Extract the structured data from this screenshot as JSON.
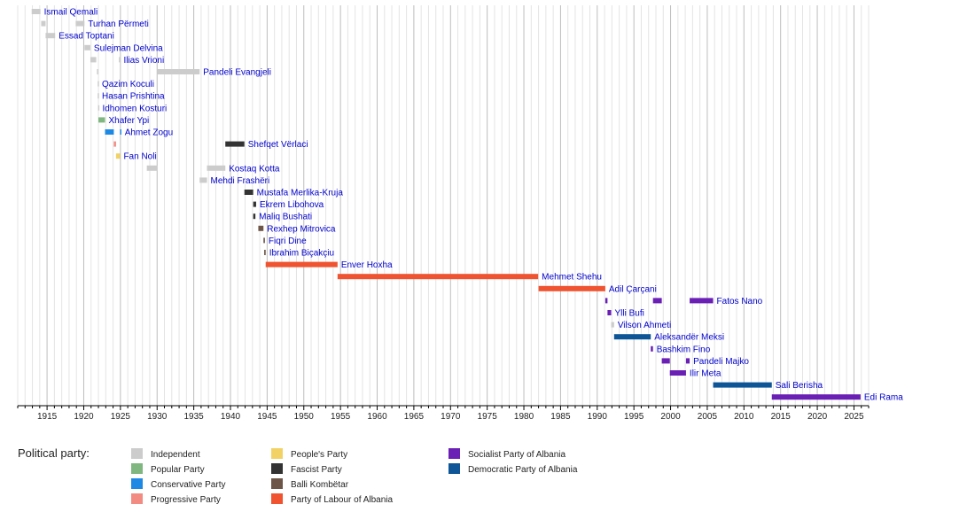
{
  "chart_data": {
    "type": "timeline",
    "title": "",
    "xlim": [
      1911,
      2027
    ],
    "xticks": [
      1915,
      1920,
      1925,
      1930,
      1935,
      1940,
      1945,
      1950,
      1955,
      1960,
      1965,
      1970,
      1975,
      1980,
      1985,
      1990,
      1995,
      2000,
      2005,
      2010,
      2015,
      2020,
      2025
    ],
    "grid": "vertical yearly lines",
    "legend_title": "Political party:",
    "parties": [
      {
        "key": "ind",
        "name": "Independent",
        "color": "#cccccc"
      },
      {
        "key": "pop",
        "name": "Popular Party",
        "color": "#80b780"
      },
      {
        "key": "con",
        "name": "Conservative Party",
        "color": "#1e88e5"
      },
      {
        "key": "prg",
        "name": "Progressive Party",
        "color": "#f28b82"
      },
      {
        "key": "ppl",
        "name": "People's Party",
        "color": "#f2d264"
      },
      {
        "key": "fas",
        "name": "Fascist Party",
        "color": "#333333"
      },
      {
        "key": "bal",
        "name": "Balli Kombëtar",
        "color": "#6d5548"
      },
      {
        "key": "pla",
        "name": "Party of Labour of Albania",
        "color": "#ef5330"
      },
      {
        "key": "spa",
        "name": "Socialist Party of Albania",
        "color": "#6a1fb5"
      },
      {
        "key": "dpa",
        "name": "Democratic Party of Albania",
        "color": "#0d5596"
      }
    ],
    "rows": [
      {
        "name": "Ismail Qemali",
        "terms": [
          {
            "start": 1912.9,
            "end": 1914.1,
            "party": "ind"
          }
        ]
      },
      {
        "name": "Turhan Përmeti",
        "terms": [
          {
            "start": 1914.2,
            "end": 1914.8,
            "party": "ind"
          },
          {
            "start": 1918.9,
            "end": 1920.1,
            "party": "ind"
          }
        ]
      },
      {
        "name": "Essad Toptani",
        "terms": [
          {
            "start": 1914.8,
            "end": 1916.1,
            "party": "ind"
          }
        ]
      },
      {
        "name": "Sulejman Delvina",
        "terms": [
          {
            "start": 1920.1,
            "end": 1920.9,
            "party": "ind"
          }
        ]
      },
      {
        "name": "Ilias Vrioni",
        "terms": [
          {
            "start": 1920.9,
            "end": 1921.7,
            "party": "ind"
          },
          {
            "start": 1924.8,
            "end": 1924.95,
            "party": "ind"
          }
        ]
      },
      {
        "name": "Pandeli Evangjeli",
        "terms": [
          {
            "start": 1921.8,
            "end": 1921.95,
            "party": "ind"
          },
          {
            "start": 1930.0,
            "end": 1935.8,
            "party": "ind"
          }
        ]
      },
      {
        "name": "Qazim Koculi",
        "terms": [
          {
            "start": 1921.9,
            "end": 1922.0,
            "party": "ind"
          }
        ]
      },
      {
        "name": "Hasan Prishtina",
        "terms": [
          {
            "start": 1921.9,
            "end": 1922.0,
            "party": "ind"
          }
        ]
      },
      {
        "name": "Idhomen Kosturi",
        "terms": [
          {
            "start": 1921.95,
            "end": 1922.05,
            "party": "ind"
          }
        ]
      },
      {
        "name": "Xhafer Ypi",
        "terms": [
          {
            "start": 1922.0,
            "end": 1922.9,
            "party": "pop"
          }
        ]
      },
      {
        "name": "Ahmet Zogu",
        "terms": [
          {
            "start": 1922.9,
            "end": 1924.1,
            "party": "con"
          },
          {
            "start": 1924.95,
            "end": 1925.1,
            "party": "con"
          }
        ]
      },
      {
        "name": "Shefqet Vërlaci",
        "terms": [
          {
            "start": 1924.1,
            "end": 1924.4,
            "party": "prg"
          },
          {
            "start": 1939.3,
            "end": 1941.9,
            "party": "fas"
          }
        ]
      },
      {
        "name": "Fan Noli",
        "terms": [
          {
            "start": 1924.4,
            "end": 1924.95,
            "party": "ppl"
          }
        ]
      },
      {
        "name": "Kostaq Kotta",
        "terms": [
          {
            "start": 1928.6,
            "end": 1930.0,
            "party": "ind"
          },
          {
            "start": 1936.8,
            "end": 1939.3,
            "party": "ind"
          }
        ]
      },
      {
        "name": "Mehdi Frashëri",
        "terms": [
          {
            "start": 1935.8,
            "end": 1936.8,
            "party": "ind"
          }
        ]
      },
      {
        "name": "Mustafa Merlika-Kruja",
        "terms": [
          {
            "start": 1941.9,
            "end": 1943.1,
            "party": "fas"
          }
        ]
      },
      {
        "name": "Ekrem Libohova",
        "terms": [
          {
            "start": 1943.1,
            "end": 1943.5,
            "party": "fas"
          }
        ]
      },
      {
        "name": "Maliq Bushati",
        "terms": [
          {
            "start": 1943.1,
            "end": 1943.4,
            "party": "fas"
          }
        ]
      },
      {
        "name": "Rexhep Mitrovica",
        "terms": [
          {
            "start": 1943.8,
            "end": 1944.5,
            "party": "bal"
          }
        ]
      },
      {
        "name": "Fiqri Dine",
        "terms": [
          {
            "start": 1944.5,
            "end": 1944.7,
            "party": "bal"
          }
        ]
      },
      {
        "name": "Ibrahim Biçakçiu",
        "terms": [
          {
            "start": 1944.6,
            "end": 1944.8,
            "party": "bal"
          }
        ]
      },
      {
        "name": "Enver Hoxha",
        "terms": [
          {
            "start": 1944.8,
            "end": 1954.6,
            "party": "pla"
          }
        ]
      },
      {
        "name": "Mehmet Shehu",
        "terms": [
          {
            "start": 1954.6,
            "end": 1981.95,
            "party": "pla"
          }
        ]
      },
      {
        "name": "Adil Çarçani",
        "terms": [
          {
            "start": 1982.0,
            "end": 1991.1,
            "party": "pla"
          }
        ]
      },
      {
        "name": "Fatos Nano",
        "terms": [
          {
            "start": 1991.1,
            "end": 1991.4,
            "party": "spa"
          },
          {
            "start": 1997.6,
            "end": 1998.8,
            "party": "spa"
          },
          {
            "start": 2002.6,
            "end": 2005.8,
            "party": "spa"
          }
        ]
      },
      {
        "name": "Ylli Bufi",
        "terms": [
          {
            "start": 1991.4,
            "end": 1991.9,
            "party": "spa"
          }
        ]
      },
      {
        "name": "Vilson Ahmeti",
        "terms": [
          {
            "start": 1991.9,
            "end": 1992.3,
            "party": "ind"
          }
        ]
      },
      {
        "name": "Aleksandër Meksi",
        "terms": [
          {
            "start": 1992.3,
            "end": 1997.3,
            "party": "dpa"
          }
        ]
      },
      {
        "name": "Bashkim Fino",
        "terms": [
          {
            "start": 1997.3,
            "end": 1997.6,
            "party": "spa"
          }
        ]
      },
      {
        "name": "Pandeli Majko",
        "terms": [
          {
            "start": 1998.8,
            "end": 1999.9,
            "party": "spa"
          },
          {
            "start": 2002.1,
            "end": 2002.6,
            "party": "spa"
          }
        ]
      },
      {
        "name": "Ilir Meta",
        "terms": [
          {
            "start": 1999.9,
            "end": 2002.1,
            "party": "spa"
          }
        ]
      },
      {
        "name": "Sali Berisha",
        "terms": [
          {
            "start": 2005.8,
            "end": 2013.8,
            "party": "dpa"
          }
        ]
      },
      {
        "name": "Edi Rama",
        "terms": [
          {
            "start": 2013.8,
            "end": 2025.9,
            "party": "spa"
          }
        ]
      }
    ]
  }
}
